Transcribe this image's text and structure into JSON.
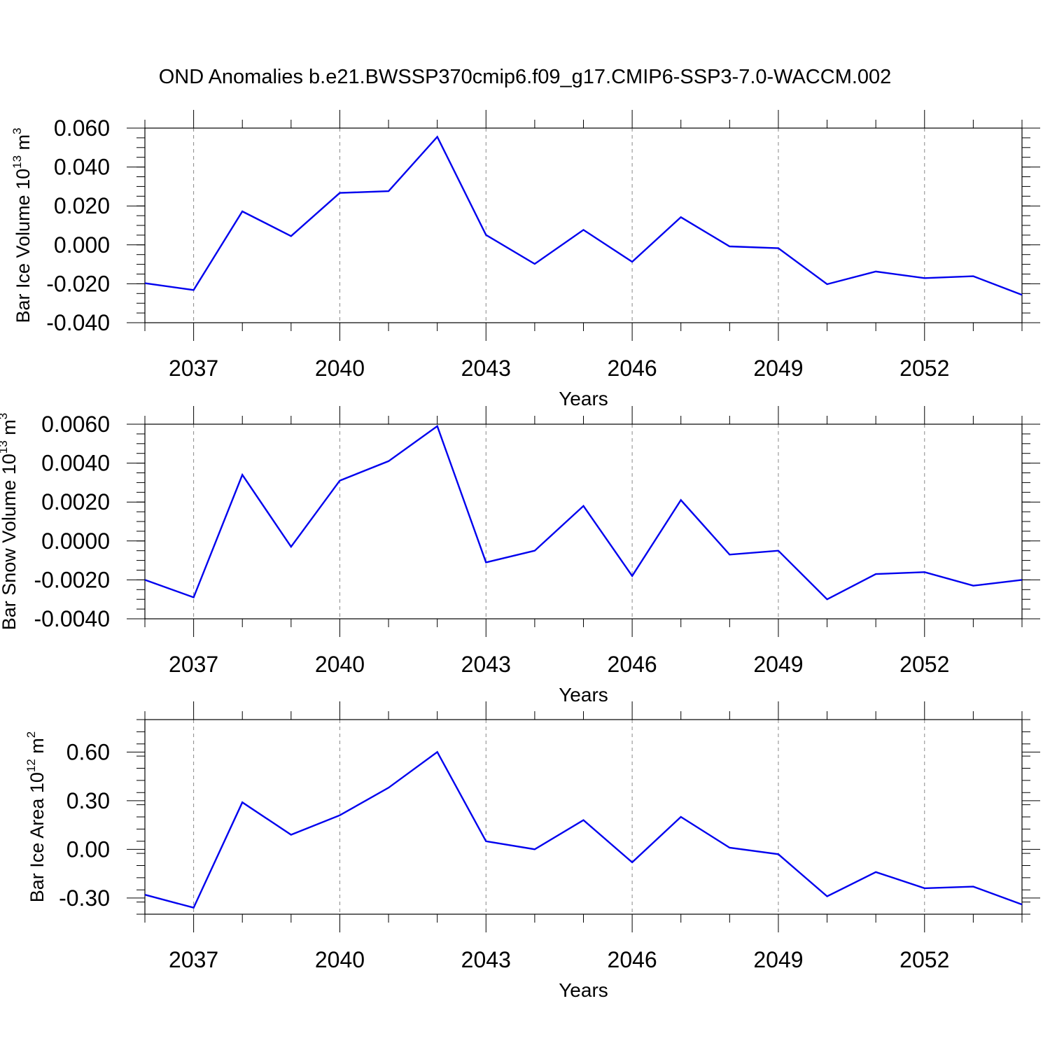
{
  "figure": {
    "title": "OND Anomalies b.e21.BWSSP370cmip6.f09_g17.CMIP6-SSP3-7.0-WACCM.002"
  },
  "colors": {
    "series_line": "#0000ee",
    "axis": "#000000",
    "grid": "#888888"
  },
  "chart_data": [
    {
      "type": "line",
      "title": "",
      "xlabel": "Years",
      "ylabel": {
        "main": "Bar Ice Volume 10",
        "exp": "13",
        "unit": " m",
        "unit_exp": "3"
      },
      "xlim": [
        2036,
        2054
      ],
      "ylim": [
        -0.04,
        0.06
      ],
      "xticks": [
        2037,
        2040,
        2043,
        2046,
        2049,
        2052
      ],
      "xtick_labels": [
        "2037",
        "2040",
        "2043",
        "2046",
        "2049",
        "2052"
      ],
      "yticks": [
        -0.04,
        -0.02,
        0.0,
        0.02,
        0.04,
        0.06
      ],
      "ytick_labels": [
        "-0.040",
        "-0.020",
        "0.000",
        "0.020",
        "0.040",
        "0.060"
      ],
      "y_minor_step": 0.005,
      "grid": "x-dashed",
      "x": [
        2036,
        2037,
        2038,
        2039,
        2040,
        2041,
        2042,
        2043,
        2044,
        2045,
        2046,
        2047,
        2048,
        2049,
        2050,
        2051,
        2052,
        2053,
        2054
      ],
      "series": [
        {
          "values": [
            -0.0197,
            -0.0232,
            0.0172,
            0.0045,
            0.0267,
            0.0276,
            0.0555,
            0.0051,
            -0.0098,
            0.0077,
            -0.0087,
            0.0142,
            -0.0008,
            -0.0017,
            -0.0202,
            -0.0137,
            -0.0171,
            -0.0161,
            -0.0257
          ]
        }
      ]
    },
    {
      "type": "line",
      "title": "",
      "xlabel": "Years",
      "ylabel": {
        "main": "Bar Snow Volume 10",
        "exp": "13",
        "unit": " m",
        "unit_exp": "3"
      },
      "xlim": [
        2036,
        2054
      ],
      "ylim": [
        -0.004,
        0.006
      ],
      "xticks": [
        2037,
        2040,
        2043,
        2046,
        2049,
        2052
      ],
      "xtick_labels": [
        "2037",
        "2040",
        "2043",
        "2046",
        "2049",
        "2052"
      ],
      "yticks": [
        -0.004,
        -0.002,
        0.0,
        0.002,
        0.004,
        0.006
      ],
      "ytick_labels": [
        "-0.0040",
        "-0.0020",
        "0.0000",
        "0.0020",
        "0.0040",
        "0.0060"
      ],
      "y_minor_step": 0.0005,
      "grid": "x-dashed",
      "x": [
        2036,
        2037,
        2038,
        2039,
        2040,
        2041,
        2042,
        2043,
        2044,
        2045,
        2046,
        2047,
        2048,
        2049,
        2050,
        2051,
        2052,
        2053,
        2054
      ],
      "series": [
        {
          "values": [
            -0.002,
            -0.0029,
            0.0034,
            -0.0003,
            0.0031,
            0.0041,
            0.0059,
            -0.0011,
            -0.0005,
            0.0018,
            -0.0018,
            0.0021,
            -0.0007,
            -0.0005,
            -0.003,
            -0.0017,
            -0.0016,
            -0.0023,
            -0.002
          ]
        }
      ]
    },
    {
      "type": "line",
      "title": "",
      "xlabel": "Years",
      "ylabel": {
        "main": "Bar Ice Area 10",
        "exp": "12",
        "unit": " m",
        "unit_exp": "2"
      },
      "xlim": [
        2036,
        2054
      ],
      "ylim": [
        -0.4,
        0.8
      ],
      "xticks": [
        2037,
        2040,
        2043,
        2046,
        2049,
        2052
      ],
      "xtick_labels": [
        "2037",
        "2040",
        "2043",
        "2046",
        "2049",
        "2052"
      ],
      "yticks": [
        -0.3,
        0.0,
        0.3,
        0.6
      ],
      "ytick_labels": [
        "-0.30",
        "0.00",
        "0.30",
        "0.60"
      ],
      "y_minor_step": 0.075,
      "grid": "x-dashed",
      "x": [
        2036,
        2037,
        2038,
        2039,
        2040,
        2041,
        2042,
        2043,
        2044,
        2045,
        2046,
        2047,
        2048,
        2049,
        2050,
        2051,
        2052,
        2053,
        2054
      ],
      "series": [
        {
          "values": [
            -0.28,
            -0.36,
            0.29,
            0.09,
            0.21,
            0.38,
            0.6,
            0.05,
            0.0,
            0.18,
            -0.08,
            0.2,
            0.01,
            -0.03,
            -0.29,
            -0.14,
            -0.24,
            -0.23,
            -0.34
          ]
        }
      ]
    }
  ]
}
